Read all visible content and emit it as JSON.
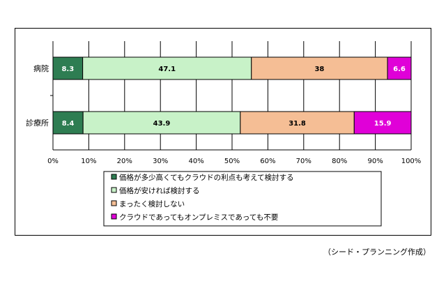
{
  "chart_data": {
    "type": "bar",
    "orientation": "horizontal",
    "stacked": "percent",
    "categories": [
      "病院",
      "診療所"
    ],
    "series": [
      {
        "name": "価格が多少高くてもクラウドの利点も考えて検討する",
        "values": [
          8.3,
          8.4
        ],
        "color": "#2E7D52",
        "label_color": "#ffffff"
      },
      {
        "name": "価格が安ければ検討する",
        "values": [
          47.1,
          43.9
        ],
        "color": "#C8F2C8",
        "label_color": "#000000"
      },
      {
        "name": "まったく検討しない",
        "values": [
          38,
          31.8
        ],
        "color": "#F5BE95",
        "label_color": "#000000"
      },
      {
        "name": "クラウドであってもオンプレミスであっても不要",
        "values": [
          6.6,
          15.9
        ],
        "color": "#E000D8",
        "label_color": "#ffffff"
      }
    ],
    "x_ticks": [
      "0%",
      "10%",
      "20%",
      "30%",
      "40%",
      "50%",
      "60%",
      "70%",
      "80%",
      "90%",
      "100%"
    ],
    "xlim": [
      0,
      100
    ],
    "grid": true,
    "legend_position": "bottom"
  },
  "source_note": "（シード・プランニング作成）"
}
